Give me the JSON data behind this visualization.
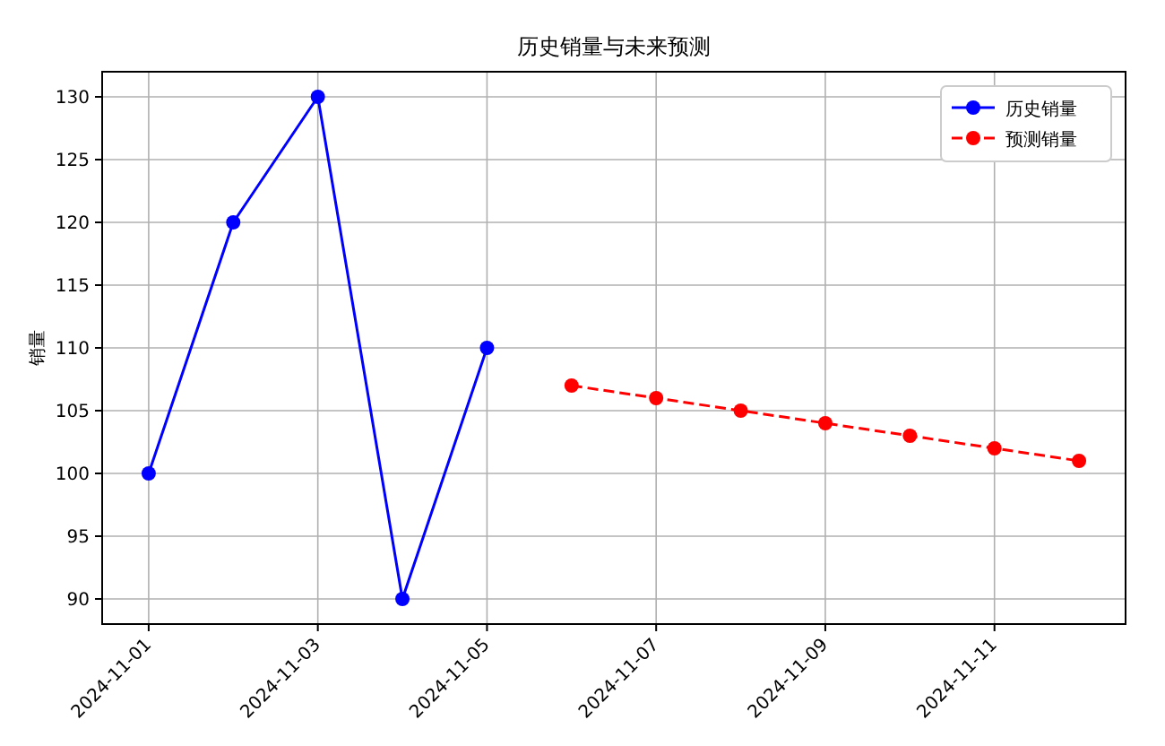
{
  "chart_data": {
    "type": "line",
    "title": "历史销量与未来预测",
    "ylabel": "销量",
    "x": [
      "2024-11-01",
      "2024-11-02",
      "2024-11-03",
      "2024-11-04",
      "2024-11-05"
    ],
    "series": [
      {
        "name": "历史销量",
        "color": "#0000ff",
        "values": [
          100,
          120,
          130,
          90,
          110
        ]
      },
      {
        "name": "预测销量",
        "color": "#ff0000",
        "line_style": "dashed",
        "x": [
          "2024-11-06",
          "2024-11-07",
          "2024-11-08",
          "2024-11-09",
          "2024-11-10",
          "2024-11-11",
          "2024-11-12"
        ],
        "values": [
          107,
          106,
          105,
          104,
          103,
          102,
          101
        ]
      }
    ],
    "xlim": [
      "2024-10-31T10:48",
      "2024-11-12T13:12"
    ],
    "xticks": [
      "2024-11-01",
      "2024-11-03",
      "2024-11-05",
      "2024-11-07",
      "2024-11-09",
      "2024-11-11"
    ],
    "ylim": [
      88,
      132
    ],
    "yticks": [
      90,
      95,
      100,
      105,
      110,
      115,
      120,
      125,
      130
    ],
    "grid": true,
    "legend": "top right",
    "marker": "circle",
    "line_style": "solid"
  }
}
